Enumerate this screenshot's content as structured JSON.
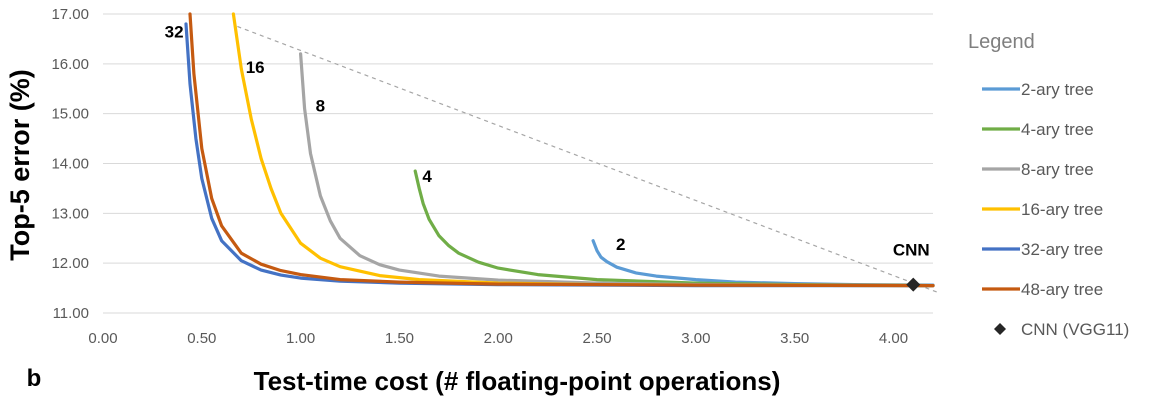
{
  "panel_label": "b",
  "chart_data": {
    "type": "line",
    "xlabel": "Test-time cost (# floating-point operations)",
    "ylabel": "Top-5 error (%)",
    "xlim": [
      0,
      4.2
    ],
    "ylim": [
      11,
      17
    ],
    "xticks": [
      "0.00",
      "0.50",
      "1.00",
      "1.50",
      "2.00",
      "2.50",
      "3.00",
      "3.50",
      "4.00"
    ],
    "yticks": [
      "11.00",
      "12.00",
      "13.00",
      "14.00",
      "15.00",
      "16.00",
      "17.00"
    ],
    "grid": "horizontal",
    "legend_title": "Legend",
    "legend_position": "right",
    "series": [
      {
        "name": "2-ary tree",
        "color": "#5b9bd5",
        "label": "2",
        "label_at": [
          2.62,
          12.26
        ],
        "x": [
          2.48,
          2.5,
          2.52,
          2.55,
          2.6,
          2.7,
          2.8,
          3.0,
          3.2,
          3.5,
          3.8,
          4.2
        ],
        "y": [
          12.45,
          12.25,
          12.12,
          12.03,
          11.92,
          11.8,
          11.74,
          11.67,
          11.62,
          11.59,
          11.57,
          11.56
        ]
      },
      {
        "name": "4-ary tree",
        "color": "#70ad47",
        "label": "4",
        "label_at": [
          1.64,
          13.63
        ],
        "x": [
          1.58,
          1.6,
          1.62,
          1.65,
          1.7,
          1.75,
          1.8,
          1.9,
          2.0,
          2.2,
          2.5,
          3.0,
          3.5,
          4.2
        ],
        "y": [
          13.85,
          13.5,
          13.2,
          12.88,
          12.55,
          12.35,
          12.2,
          12.02,
          11.9,
          11.77,
          11.67,
          11.6,
          11.57,
          11.55
        ]
      },
      {
        "name": "8-ary tree",
        "color": "#a5a5a5",
        "label": "8",
        "label_at": [
          1.1,
          15.04
        ],
        "x": [
          1.0,
          1.02,
          1.05,
          1.1,
          1.15,
          1.2,
          1.3,
          1.4,
          1.5,
          1.7,
          2.0,
          2.5,
          3.0,
          4.2
        ],
        "y": [
          16.2,
          15.1,
          14.2,
          13.35,
          12.85,
          12.5,
          12.15,
          11.97,
          11.86,
          11.74,
          11.66,
          11.6,
          11.57,
          11.55
        ]
      },
      {
        "name": "16-ary tree",
        "color": "#ffc000",
        "label": "16",
        "label_at": [
          0.77,
          15.82
        ],
        "x": [
          0.66,
          0.7,
          0.75,
          0.8,
          0.85,
          0.9,
          1.0,
          1.1,
          1.2,
          1.4,
          1.6,
          2.0,
          2.5,
          3.0,
          4.2
        ],
        "y": [
          17.0,
          15.9,
          14.9,
          14.1,
          13.5,
          13.0,
          12.4,
          12.1,
          11.93,
          11.75,
          11.67,
          11.6,
          11.57,
          11.56,
          11.55
        ]
      },
      {
        "name": "32-ary tree",
        "color": "#4472c4",
        "label": "32",
        "label_at": [
          0.36,
          16.53
        ],
        "x": [
          0.42,
          0.44,
          0.47,
          0.5,
          0.55,
          0.6,
          0.7,
          0.8,
          0.9,
          1.0,
          1.2,
          1.5,
          2.0,
          3.0,
          4.2
        ],
        "y": [
          16.8,
          15.6,
          14.5,
          13.7,
          12.9,
          12.45,
          12.05,
          11.86,
          11.76,
          11.7,
          11.64,
          11.6,
          11.57,
          11.55,
          11.55
        ]
      },
      {
        "name": "48-ary tree",
        "color": "#c55a11",
        "label": "",
        "label_at": null,
        "x": [
          0.44,
          0.46,
          0.5,
          0.55,
          0.6,
          0.7,
          0.8,
          0.9,
          1.0,
          1.2,
          1.5,
          2.0,
          3.0,
          4.2
        ],
        "y": [
          17.0,
          15.8,
          14.3,
          13.3,
          12.75,
          12.2,
          11.98,
          11.85,
          11.77,
          11.67,
          11.62,
          11.58,
          11.56,
          11.55
        ]
      }
    ],
    "reference_point": {
      "name": "CNN (VGG11)",
      "label": "CNN",
      "x": 4.1,
      "y": 11.57,
      "color": "#262626"
    },
    "dashed_line": {
      "x": [
        0.68,
        4.22
      ],
      "y": [
        16.75,
        11.42
      ],
      "color": "#a6a6a6"
    }
  }
}
